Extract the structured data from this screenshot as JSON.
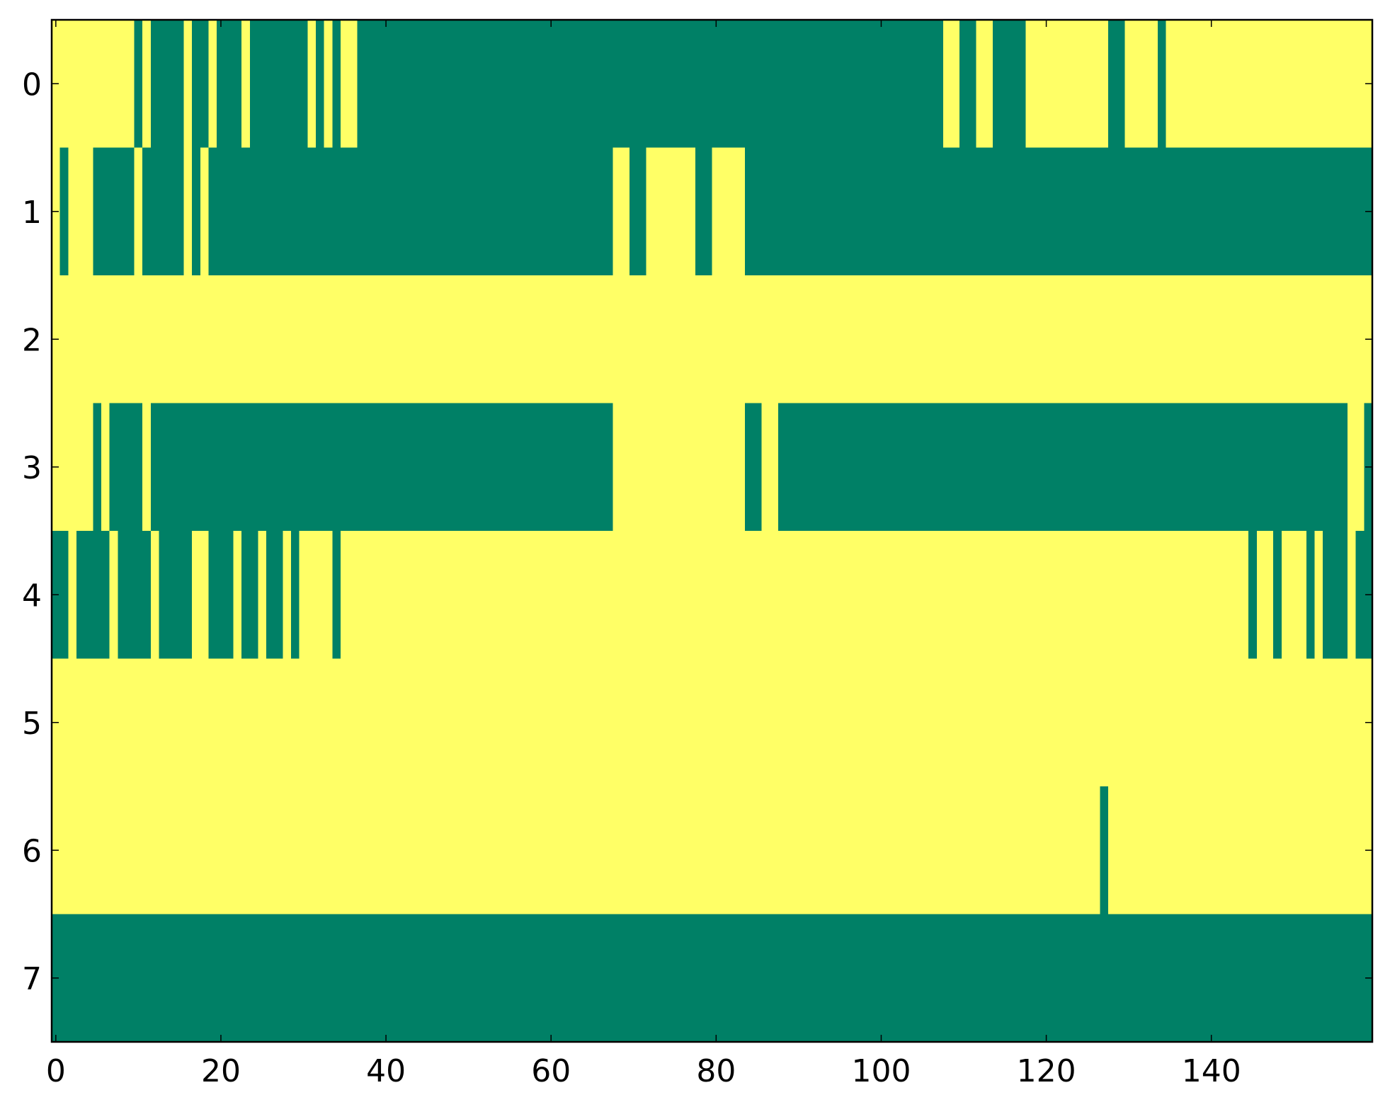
{
  "chart_data": {
    "type": "heatmap",
    "xlim": [
      -0.5,
      159.5
    ],
    "ylim": [
      7.5,
      -0.5
    ],
    "xticks": [
      0,
      20,
      40,
      60,
      80,
      100,
      120,
      140
    ],
    "yticks": [
      0,
      1,
      2,
      3,
      4,
      5,
      6,
      7
    ],
    "colors": [
      "#008066",
      "#ffff66"
    ],
    "z": [
      [
        1,
        1,
        1,
        1,
        1,
        1,
        1,
        1,
        1,
        1,
        0,
        1,
        0,
        0,
        0,
        0,
        1,
        0,
        0,
        1,
        0,
        0,
        0,
        1,
        0,
        0,
        0,
        0,
        0,
        0,
        0,
        1,
        0,
        1,
        0,
        1,
        1,
        0,
        0,
        0,
        0,
        0,
        0,
        0,
        0,
        0,
        0,
        0,
        0,
        0,
        0,
        0,
        0,
        0,
        0,
        0,
        0,
        0,
        0,
        0,
        0,
        0,
        0,
        0,
        0,
        0,
        0,
        0,
        0,
        0,
        0,
        0,
        0,
        0,
        0,
        0,
        0,
        0,
        0,
        0,
        0,
        0,
        0,
        0,
        0,
        0,
        0,
        0,
        0,
        0,
        0,
        0,
        0,
        0,
        0,
        0,
        0,
        0,
        0,
        0,
        0,
        0,
        0,
        0,
        0,
        0,
        0,
        0,
        1,
        1,
        0,
        0,
        1,
        1,
        0,
        0,
        0,
        0,
        1,
        1,
        1,
        1,
        1,
        1,
        1,
        1,
        1,
        1,
        0,
        0,
        1,
        1,
        1,
        1,
        0,
        1,
        1,
        1,
        1,
        1,
        1,
        1,
        1,
        1,
        1,
        1,
        1,
        1,
        1,
        1,
        1,
        1,
        1,
        1,
        1,
        1,
        1,
        1,
        1,
        1
      ],
      [
        1,
        0,
        1,
        1,
        1,
        0,
        0,
        0,
        0,
        0,
        1,
        0,
        0,
        0,
        0,
        0,
        1,
        0,
        1,
        0,
        0,
        0,
        0,
        0,
        0,
        0,
        0,
        0,
        0,
        0,
        0,
        0,
        0,
        0,
        0,
        0,
        0,
        0,
        0,
        0,
        0,
        0,
        0,
        0,
        0,
        0,
        0,
        0,
        0,
        0,
        0,
        0,
        0,
        0,
        0,
        0,
        0,
        0,
        0,
        0,
        0,
        0,
        0,
        0,
        0,
        0,
        0,
        0,
        1,
        1,
        0,
        0,
        1,
        1,
        1,
        1,
        1,
        1,
        0,
        0,
        1,
        1,
        1,
        1,
        0,
        0,
        0,
        0,
        0,
        0,
        0,
        0,
        0,
        0,
        0,
        0,
        0,
        0,
        0,
        0,
        0,
        0,
        0,
        0,
        0,
        0,
        0,
        0,
        0,
        0,
        0,
        0,
        0,
        0,
        0,
        0,
        0,
        0,
        0,
        0,
        0,
        0,
        0,
        0,
        0,
        0,
        0,
        0,
        0,
        0,
        0,
        0,
        0,
        0,
        0,
        0,
        0,
        0,
        0,
        0,
        0,
        0,
        0,
        0,
        0,
        0,
        0,
        0,
        0,
        0,
        0,
        0,
        0,
        0,
        0,
        0,
        0,
        0,
        0,
        0
      ],
      [
        1,
        1,
        1,
        1,
        1,
        1,
        1,
        1,
        1,
        1,
        1,
        1,
        1,
        1,
        1,
        1,
        1,
        1,
        1,
        1,
        1,
        1,
        1,
        1,
        1,
        1,
        1,
        1,
        1,
        1,
        1,
        1,
        1,
        1,
        1,
        1,
        1,
        1,
        1,
        1,
        1,
        1,
        1,
        1,
        1,
        1,
        1,
        1,
        1,
        1,
        1,
        1,
        1,
        1,
        1,
        1,
        1,
        1,
        1,
        1,
        1,
        1,
        1,
        1,
        1,
        1,
        1,
        1,
        1,
        1,
        1,
        1,
        1,
        1,
        1,
        1,
        1,
        1,
        1,
        1,
        1,
        1,
        1,
        1,
        1,
        1,
        1,
        1,
        1,
        1,
        1,
        1,
        1,
        1,
        1,
        1,
        1,
        1,
        1,
        1,
        1,
        1,
        1,
        1,
        1,
        1,
        1,
        1,
        1,
        1,
        1,
        1,
        1,
        1,
        1,
        1,
        1,
        1,
        1,
        1,
        1,
        1,
        1,
        1,
        1,
        1,
        1,
        1,
        1,
        1,
        1,
        1,
        1,
        1,
        1,
        1,
        1,
        1,
        1,
        1,
        1,
        1,
        1,
        1,
        1,
        1,
        1,
        1,
        1,
        1,
        1,
        1,
        1,
        1,
        1,
        1,
        1,
        1,
        1,
        1
      ],
      [
        1,
        1,
        1,
        1,
        1,
        0,
        1,
        0,
        0,
        0,
        0,
        1,
        0,
        0,
        0,
        0,
        0,
        0,
        0,
        0,
        0,
        0,
        0,
        0,
        0,
        0,
        0,
        0,
        0,
        0,
        0,
        0,
        0,
        0,
        0,
        0,
        0,
        0,
        0,
        0,
        0,
        0,
        0,
        0,
        0,
        0,
        0,
        0,
        0,
        0,
        0,
        0,
        0,
        0,
        0,
        0,
        0,
        0,
        0,
        0,
        0,
        0,
        0,
        0,
        0,
        0,
        0,
        0,
        1,
        1,
        1,
        1,
        1,
        1,
        1,
        1,
        1,
        1,
        1,
        1,
        1,
        1,
        1,
        1,
        0,
        0,
        1,
        1,
        0,
        0,
        0,
        0,
        0,
        0,
        0,
        0,
        0,
        0,
        0,
        0,
        0,
        0,
        0,
        0,
        0,
        0,
        0,
        0,
        0,
        0,
        0,
        0,
        0,
        0,
        0,
        0,
        0,
        0,
        0,
        0,
        0,
        0,
        0,
        0,
        0,
        0,
        0,
        0,
        0,
        0,
        0,
        0,
        0,
        0,
        0,
        0,
        0,
        0,
        0,
        0,
        0,
        0,
        0,
        0,
        0,
        0,
        0,
        0,
        0,
        0,
        0,
        0,
        0,
        0,
        0,
        0,
        0,
        1,
        1,
        0
      ],
      [
        0,
        0,
        1,
        0,
        0,
        0,
        0,
        1,
        0,
        0,
        0,
        0,
        1,
        0,
        0,
        0,
        0,
        1,
        1,
        0,
        0,
        0,
        1,
        0,
        0,
        1,
        0,
        0,
        1,
        0,
        1,
        1,
        1,
        1,
        0,
        1,
        1,
        1,
        1,
        1,
        1,
        1,
        1,
        1,
        1,
        1,
        1,
        1,
        1,
        1,
        1,
        1,
        1,
        1,
        1,
        1,
        1,
        1,
        1,
        1,
        1,
        1,
        1,
        1,
        1,
        1,
        1,
        1,
        1,
        1,
        1,
        1,
        1,
        1,
        1,
        1,
        1,
        1,
        1,
        1,
        1,
        1,
        1,
        1,
        1,
        1,
        1,
        1,
        1,
        1,
        1,
        1,
        1,
        1,
        1,
        1,
        1,
        1,
        1,
        1,
        1,
        1,
        1,
        1,
        1,
        1,
        1,
        1,
        1,
        1,
        1,
        1,
        1,
        1,
        1,
        1,
        1,
        1,
        1,
        1,
        1,
        1,
        1,
        1,
        1,
        1,
        1,
        1,
        1,
        1,
        1,
        1,
        1,
        1,
        1,
        1,
        1,
        1,
        1,
        1,
        1,
        1,
        1,
        1,
        1,
        0,
        1,
        1,
        0,
        1,
        1,
        1,
        0,
        1,
        0,
        0,
        0,
        1,
        0,
        0
      ],
      [
        1,
        1,
        1,
        1,
        1,
        1,
        1,
        1,
        1,
        1,
        1,
        1,
        1,
        1,
        1,
        1,
        1,
        1,
        1,
        1,
        1,
        1,
        1,
        1,
        1,
        1,
        1,
        1,
        1,
        1,
        1,
        1,
        1,
        1,
        1,
        1,
        1,
        1,
        1,
        1,
        1,
        1,
        1,
        1,
        1,
        1,
        1,
        1,
        1,
        1,
        1,
        1,
        1,
        1,
        1,
        1,
        1,
        1,
        1,
        1,
        1,
        1,
        1,
        1,
        1,
        1,
        1,
        1,
        1,
        1,
        1,
        1,
        1,
        1,
        1,
        1,
        1,
        1,
        1,
        1,
        1,
        1,
        1,
        1,
        1,
        1,
        1,
        1,
        1,
        1,
        1,
        1,
        1,
        1,
        1,
        1,
        1,
        1,
        1,
        1,
        1,
        1,
        1,
        1,
        1,
        1,
        1,
        1,
        1,
        1,
        1,
        1,
        1,
        1,
        1,
        1,
        1,
        1,
        1,
        1,
        1,
        1,
        1,
        1,
        1,
        1,
        1,
        1,
        1,
        1,
        1,
        1,
        1,
        1,
        1,
        1,
        1,
        1,
        1,
        1,
        1,
        1,
        1,
        1,
        1,
        1,
        1,
        1,
        1,
        1,
        1,
        1,
        1,
        1,
        1,
        1,
        1,
        1,
        1,
        1
      ],
      [
        1,
        1,
        1,
        1,
        1,
        1,
        1,
        1,
        1,
        1,
        1,
        1,
        1,
        1,
        1,
        1,
        1,
        1,
        1,
        1,
        1,
        1,
        1,
        1,
        1,
        1,
        1,
        1,
        1,
        1,
        1,
        1,
        1,
        1,
        1,
        1,
        1,
        1,
        1,
        1,
        1,
        1,
        1,
        1,
        1,
        1,
        1,
        1,
        1,
        1,
        1,
        1,
        1,
        1,
        1,
        1,
        1,
        1,
        1,
        1,
        1,
        1,
        1,
        1,
        1,
        1,
        1,
        1,
        1,
        1,
        1,
        1,
        1,
        1,
        1,
        1,
        1,
        1,
        1,
        1,
        1,
        1,
        1,
        1,
        1,
        1,
        1,
        1,
        1,
        1,
        1,
        1,
        1,
        1,
        1,
        1,
        1,
        1,
        1,
        1,
        1,
        1,
        1,
        1,
        1,
        1,
        1,
        1,
        1,
        1,
        1,
        1,
        1,
        1,
        1,
        1,
        1,
        1,
        1,
        1,
        1,
        1,
        1,
        1,
        1,
        1,
        1,
        0,
        1,
        1,
        1,
        1,
        1,
        1,
        1,
        1,
        1,
        1,
        1,
        1,
        1,
        1,
        1,
        1,
        1,
        1,
        1,
        1,
        1,
        1,
        1,
        1,
        1,
        1,
        1,
        1,
        1,
        1,
        1,
        1
      ],
      [
        0,
        0,
        0,
        0,
        0,
        0,
        0,
        0,
        0,
        0,
        0,
        0,
        0,
        0,
        0,
        0,
        0,
        0,
        0,
        0,
        0,
        0,
        0,
        0,
        0,
        0,
        0,
        0,
        0,
        0,
        0,
        0,
        0,
        0,
        0,
        0,
        0,
        0,
        0,
        0,
        0,
        0,
        0,
        0,
        0,
        0,
        0,
        0,
        0,
        0,
        0,
        0,
        0,
        0,
        0,
        0,
        0,
        0,
        0,
        0,
        0,
        0,
        0,
        0,
        0,
        0,
        0,
        0,
        0,
        0,
        0,
        0,
        0,
        0,
        0,
        0,
        0,
        0,
        0,
        0,
        0,
        0,
        0,
        0,
        0,
        0,
        0,
        0,
        0,
        0,
        0,
        0,
        0,
        0,
        0,
        0,
        0,
        0,
        0,
        0,
        0,
        0,
        0,
        0,
        0,
        0,
        0,
        0,
        0,
        0,
        0,
        0,
        0,
        0,
        0,
        0,
        0,
        0,
        0,
        0,
        0,
        0,
        0,
        0,
        0,
        0,
        0,
        0,
        0,
        0,
        0,
        0,
        0,
        0,
        0,
        0,
        0,
        0,
        0,
        0,
        0,
        0,
        0,
        0,
        0,
        0,
        0,
        0,
        0,
        0,
        0,
        0,
        0,
        0,
        0,
        0,
        0,
        0,
        0,
        0
      ]
    ]
  }
}
